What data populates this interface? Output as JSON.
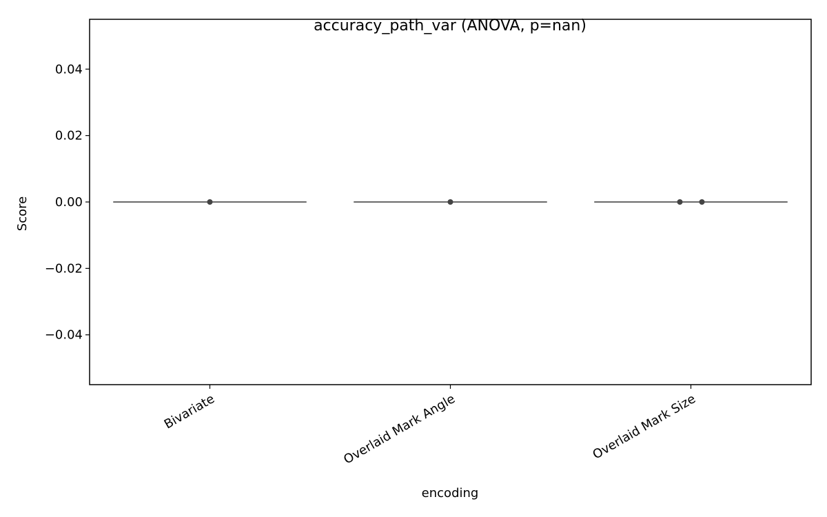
{
  "chart_data": {
    "type": "box",
    "title": "accuracy_path_var (ANOVA, p=nan)",
    "xlabel": "encoding",
    "ylabel": "Score",
    "ylim": [
      -0.055,
      0.055
    ],
    "yticks": [
      -0.04,
      -0.02,
      0.0,
      0.02,
      0.04
    ],
    "ytick_labels": [
      "−0.04",
      "−0.02",
      "0.00",
      "0.02",
      "0.04"
    ],
    "categories": [
      "Bivariate",
      "Overlaid Mark Angle",
      "Overlaid Mark Size"
    ],
    "boxes": [
      {
        "category": "Bivariate",
        "min": 0.0,
        "q1": 0.0,
        "median": 0.0,
        "q3": 0.0,
        "max": 0.0
      },
      {
        "category": "Overlaid Mark Angle",
        "min": 0.0,
        "q1": 0.0,
        "median": 0.0,
        "q3": 0.0,
        "max": 0.0
      },
      {
        "category": "Overlaid Mark Size",
        "min": 0.0,
        "q1": 0.0,
        "median": 0.0,
        "q3": 0.0,
        "max": 0.0
      }
    ],
    "points": [
      {
        "category": "Bivariate",
        "value": 0.0
      },
      {
        "category": "Overlaid Mark Angle",
        "value": 0.0
      },
      {
        "category": "Overlaid Mark Size",
        "value": 0.0
      },
      {
        "category": "Overlaid Mark Size",
        "value": 0.0
      }
    ],
    "grid": false,
    "legend": "none",
    "colors": {
      "box_line": "#555555",
      "point": "#444444",
      "axes": "#000000"
    }
  }
}
